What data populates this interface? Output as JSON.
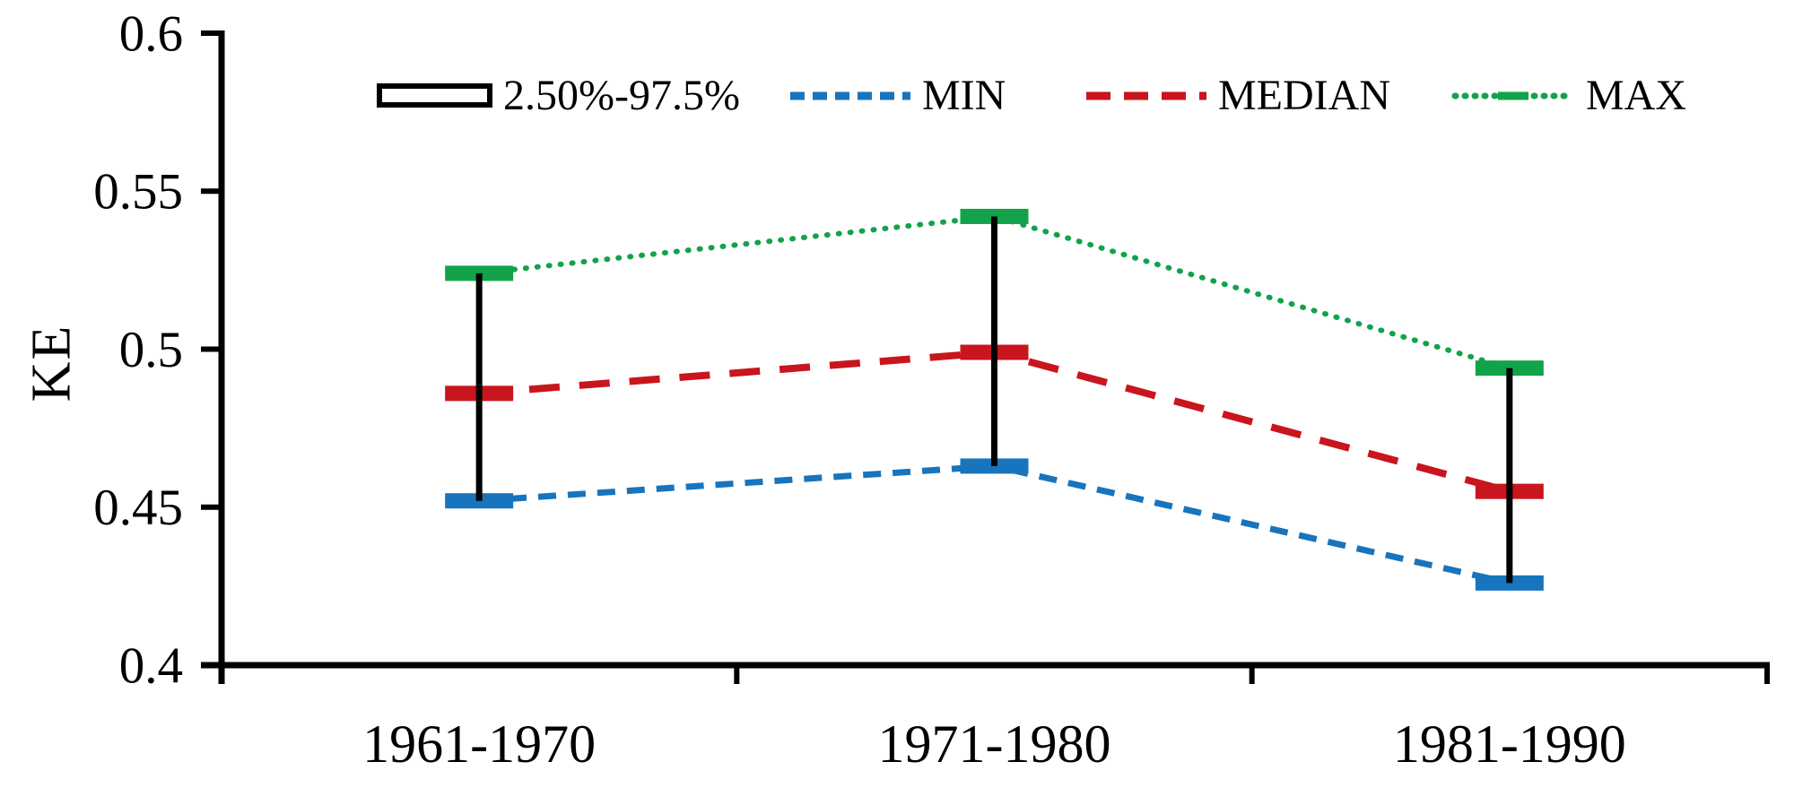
{
  "chart_data": {
    "type": "line",
    "title": "",
    "xlabel": "",
    "ylabel": "KE",
    "categories": [
      "1961-1970",
      "1971-1980",
      "1981-1990"
    ],
    "series": [
      {
        "name": "MIN",
        "color": "#1874BC",
        "style": "dashed",
        "values": [
          0.452,
          0.463,
          0.426
        ]
      },
      {
        "name": "MEDIAN",
        "color": "#C9151D",
        "style": "long-dashed",
        "values": [
          0.486,
          0.499,
          0.455
        ]
      },
      {
        "name": "MAX",
        "color": "#12A34A",
        "style": "dotted",
        "values": [
          0.524,
          0.542,
          0.494
        ]
      }
    ],
    "range_bars": {
      "label": "2.50%-97.5%",
      "color": "#000000",
      "low": [
        0.452,
        0.463,
        0.426
      ],
      "high": [
        0.524,
        0.542,
        0.494
      ]
    },
    "ylim": [
      0.4,
      0.6
    ],
    "yticks": [
      0.6,
      0.55,
      0.5,
      0.45,
      0.4
    ],
    "ytick_labels": [
      "0.6",
      "0.55",
      "0.5",
      "0.45",
      "0.4"
    ],
    "legend_position": "top",
    "grid": false
  }
}
